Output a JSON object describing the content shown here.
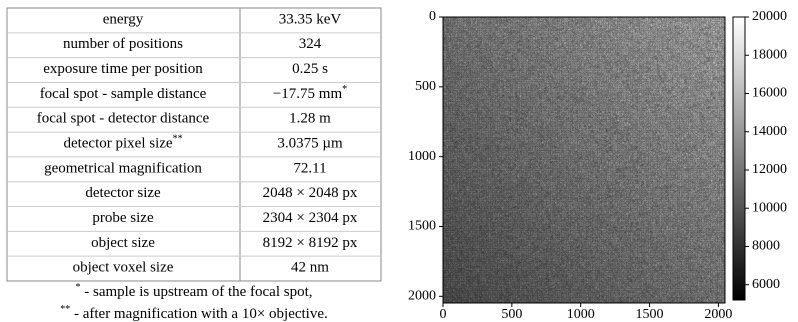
{
  "table": {
    "rows": [
      [
        {
          "text": "energy"
        },
        {
          "text": "33.35 keV"
        }
      ],
      [
        {
          "text": "number of positions"
        },
        {
          "text": "324"
        }
      ],
      [
        {
          "text": "exposure time per position"
        },
        {
          "text": "0.25 s"
        }
      ],
      [
        {
          "text": "focal spot - sample distance"
        },
        {
          "text": "−17.75 mm",
          "sup": "*"
        }
      ],
      [
        {
          "text": "focal spot - detector distance"
        },
        {
          "text": "1.28 m"
        }
      ],
      [
        {
          "text": "detector pixel size",
          "sup": "**"
        },
        {
          "text": "3.0375 µm"
        }
      ],
      [
        {
          "text": "geometrical magnification"
        },
        {
          "text": "72.11"
        }
      ],
      [
        {
          "text": "detector size"
        },
        {
          "text": "2048 × 2048 px"
        }
      ],
      [
        {
          "text": "probe size"
        },
        {
          "text": "2304 × 2304 px"
        }
      ],
      [
        {
          "text": "object size"
        },
        {
          "text": "8192 × 8192 px"
        }
      ],
      [
        {
          "text": "object voxel size"
        },
        {
          "text": "42 nm"
        }
      ]
    ],
    "footnotes": [
      {
        "sup": "*",
        "text": " - sample is upstream of the focal spot,"
      },
      {
        "sup": "**",
        "text": " - after magnification with a 10× objective."
      }
    ]
  },
  "chart_data": {
    "type": "heatmap",
    "xlim": [
      0,
      2048
    ],
    "ylim": [
      0,
      2048
    ],
    "y_inverted": true,
    "xticks": [
      0,
      500,
      1000,
      1500,
      2000
    ],
    "yticks": [
      0,
      500,
      1000,
      1500,
      2000
    ],
    "clim": [
      5200,
      20000
    ],
    "cticks": [
      6000,
      8000,
      10000,
      12000,
      14000,
      16000,
      18000,
      20000
    ],
    "colormap": "gray"
  }
}
